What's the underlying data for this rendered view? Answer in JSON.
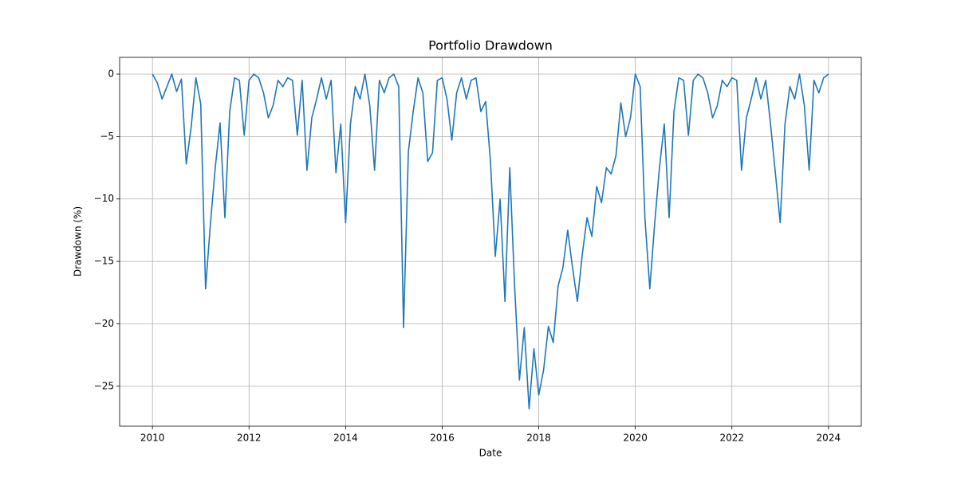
{
  "chart_data": {
    "type": "line",
    "title": "Portfolio Drawdown",
    "xlabel": "Date",
    "ylabel": "Drawdown (%)",
    "x": [
      2010,
      2010.1,
      2010.2,
      2010.3,
      2010.4,
      2010.5,
      2010.6,
      2010.7,
      2010.8,
      2010.9,
      2011,
      2011.1,
      2011.2,
      2011.3,
      2011.4,
      2011.5,
      2011.6,
      2011.7,
      2011.8,
      2011.9,
      2012,
      2012.1,
      2012.2,
      2012.3,
      2012.4,
      2012.5,
      2012.6,
      2012.7,
      2012.8,
      2012.9,
      2013,
      2013.1,
      2013.2,
      2013.3,
      2013.4,
      2013.5,
      2013.6,
      2013.7,
      2013.8,
      2013.9,
      2014,
      2014.1,
      2014.2,
      2014.3,
      2014.4,
      2014.5,
      2014.6,
      2014.7,
      2014.8,
      2014.9,
      2015,
      2015.1,
      2015.2,
      2015.3,
      2015.4,
      2015.5,
      2015.6,
      2015.7,
      2015.8,
      2015.9,
      2016,
      2016.1,
      2016.2,
      2016.3,
      2016.4,
      2016.5,
      2016.6,
      2016.7,
      2016.8,
      2016.9,
      2017,
      2017.1,
      2017.2,
      2017.3,
      2017.4,
      2017.5,
      2017.6,
      2017.7,
      2017.8,
      2017.9,
      2018,
      2018.1,
      2018.2,
      2018.3,
      2018.4,
      2018.5,
      2018.6,
      2018.7,
      2018.8,
      2018.9,
      2019,
      2019.1,
      2019.2,
      2019.3,
      2019.4,
      2019.5,
      2019.6,
      2019.7,
      2019.8,
      2019.9,
      2020,
      2020.1,
      2020.2,
      2020.3,
      2020.4,
      2020.5,
      2020.6,
      2020.7,
      2020.8,
      2020.9,
      2021,
      2021.1,
      2021.2,
      2021.3,
      2021.4,
      2021.5,
      2021.6,
      2021.7,
      2021.8,
      2021.9,
      2022,
      2022.1,
      2022.2,
      2022.3,
      2022.4,
      2022.5,
      2022.6,
      2022.7,
      2022.8,
      2022.9,
      2023,
      2023.1,
      2023.2,
      2023.3,
      2023.4,
      2023.5,
      2023.6,
      2023.7,
      2023.8,
      2023.9,
      2024
    ],
    "values": [
      0,
      -0.7,
      -2,
      -1,
      0,
      -1.4,
      -0.4,
      -7.2,
      -4.3,
      -0.3,
      -2.4,
      -17.2,
      -12,
      -7.5,
      -3.9,
      -11.5,
      -3,
      -0.3,
      -0.5,
      -4.9,
      -0.5,
      0,
      -0.3,
      -1.5,
      -3.5,
      -2.5,
      -0.5,
      -1,
      -0.3,
      -0.5,
      -4.9,
      -0.5,
      -7.7,
      -3.5,
      -2,
      -0.3,
      -2,
      -0.5,
      -7.9,
      -4,
      -11.9,
      -4,
      -1,
      -2,
      0,
      -2.5,
      -7.7,
      -0.5,
      -1.5,
      -0.3,
      0,
      -1,
      -20.3,
      -6.2,
      -3,
      -0.3,
      -1.5,
      -7,
      -6.3,
      -0.5,
      -0.3,
      -2,
      -5.3,
      -1.5,
      -0.3,
      -2,
      -0.5,
      -0.3,
      -3,
      -2.2,
      -7,
      -14.6,
      -10,
      -18.2,
      -7.5,
      -17,
      -24.5,
      -20.3,
      -26.8,
      -22,
      -25.7,
      -23.7,
      -20.2,
      -21.5,
      -17,
      -15.5,
      -12.5,
      -15.5,
      -18.2,
      -14.5,
      -11.5,
      -13,
      -9,
      -10.3,
      -7.5,
      -8,
      -6.5,
      -2.3,
      -5,
      -3.5,
      0,
      -1,
      -11.6,
      -17.2,
      -12,
      -7.5,
      -4,
      -11.5,
      -3,
      -0.3,
      -0.5,
      -4.9,
      -0.5,
      0,
      -0.3,
      -1.5,
      -3.5,
      -2.5,
      -0.5,
      -1,
      -0.3,
      -0.5,
      -7.7,
      -3.5,
      -2,
      -0.3,
      -2,
      -0.5,
      -4,
      -7.9,
      -11.9,
      -4,
      -1,
      -2,
      0,
      -2.5,
      -7.7,
      -0.5,
      -1.5,
      -0.3,
      0
    ],
    "color": "#1f77b4",
    "xlim": [
      2009.32,
      2024.68
    ],
    "xticks": [
      2010,
      2012,
      2014,
      2016,
      2018,
      2020,
      2022,
      2024
    ],
    "ylim": [
      -28.2,
      1.34
    ],
    "yticks": [
      0,
      {
        "value": -5,
        "label": "−5"
      },
      {
        "value": -10,
        "label": "−10"
      },
      {
        "value": -15,
        "label": "−15"
      },
      {
        "value": -20,
        "label": "−20"
      },
      {
        "value": -25,
        "label": "−25"
      }
    ],
    "grid": true
  }
}
